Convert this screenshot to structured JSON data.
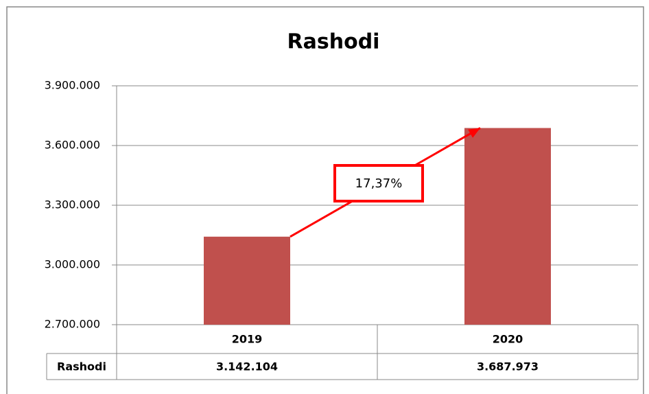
{
  "chart_data": {
    "type": "bar",
    "title": "Rashodi",
    "categories": [
      "2019",
      "2020"
    ],
    "series": [
      {
        "name": "Rashodi",
        "color": "#c0504d",
        "values": [
          3142104,
          3687973
        ],
        "value_labels": [
          "3.142.104",
          "3.687.973"
        ]
      }
    ],
    "ylim": [
      2700000,
      3900000
    ],
    "yticks": [
      {
        "value": 2700000,
        "label": "2.700.000"
      },
      {
        "value": 3000000,
        "label": "3.000.000"
      },
      {
        "value": 3300000,
        "label": "3.300.000"
      },
      {
        "value": 3600000,
        "label": "3.600.000"
      },
      {
        "value": 3900000,
        "label": "3.900.000"
      }
    ],
    "grid": true,
    "annotation": "17,37%"
  }
}
